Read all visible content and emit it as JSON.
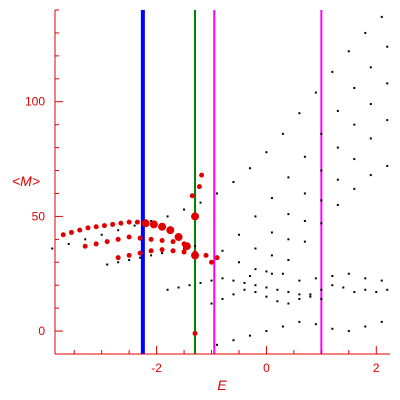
{
  "chart_data": {
    "type": "scatter",
    "title": "",
    "xlabel": "E",
    "ylabel": "<M>",
    "xlim": [
      -3.85,
      2.25
    ],
    "ylim": [
      -10,
      140
    ],
    "x_ticks": [
      -2,
      0,
      2
    ],
    "y_ticks": [
      0,
      50,
      100
    ],
    "x_tick_labels": [
      "-2",
      "0",
      "2"
    ],
    "y_tick_labels": [
      "0",
      "50",
      "100"
    ],
    "grid": false,
    "legend": "none",
    "colors": {
      "axes": "#e00000",
      "black_points": "#000000",
      "red_points": "#e00000",
      "blue_line": "#0000ff",
      "green_line": "#008000",
      "magenta_line": "#ff00ff"
    },
    "vertical_lines": [
      {
        "x": -2.25,
        "color": "#0000ff"
      },
      {
        "x": -1.3,
        "color": "#008000"
      },
      {
        "x": -0.95,
        "color": "#ff00ff"
      },
      {
        "x": 1.0,
        "color": "#ff00ff"
      }
    ],
    "black_series": [
      {
        "x": [
          -3.9,
          -3.6,
          -3.3,
          -3.0,
          -2.7,
          -2.4,
          -2.1,
          -1.8,
          -1.5,
          -1.2,
          -0.9,
          -0.6,
          -0.3,
          0.0,
          0.3,
          0.6,
          0.9,
          1.2,
          1.5,
          1.8,
          2.1
        ],
        "y": [
          36,
          38,
          40,
          42,
          44,
          46,
          48,
          50,
          53,
          56,
          60,
          65,
          71,
          78,
          86,
          95,
          104,
          113,
          122,
          130,
          137
        ]
      },
      {
        "x": [
          -0.8,
          -0.5,
          -0.2,
          0.1,
          0.4,
          0.7,
          1.0,
          1.3,
          1.6,
          1.9,
          2.2
        ],
        "y": [
          35,
          42,
          50,
          58,
          67,
          76,
          86,
          96,
          106,
          115,
          124
        ]
      },
      {
        "x": [
          -0.5,
          -0.2,
          0.1,
          0.4,
          0.7,
          1.0,
          1.3,
          1.6,
          1.9,
          2.2
        ],
        "y": [
          30,
          36,
          43,
          51,
          60,
          70,
          80,
          90,
          99,
          108
        ]
      },
      {
        "x": [
          -0.2,
          0.1,
          0.4,
          0.7,
          1.0,
          1.3,
          1.6,
          1.9,
          2.2
        ],
        "y": [
          27,
          33,
          40,
          48,
          57,
          66,
          75,
          84,
          92
        ]
      },
      {
        "x": [
          0.1,
          0.4,
          0.7,
          1.0,
          1.3,
          1.6,
          1.9,
          2.2
        ],
        "y": [
          25,
          31,
          39,
          47,
          55,
          62,
          68,
          72
        ]
      },
      {
        "x": [
          -2.9,
          -2.7,
          -2.5,
          -2.3,
          -2.1,
          -1.9,
          -1.7,
          -1.5,
          -1.3
        ],
        "y": [
          29,
          30,
          31,
          32,
          33,
          34,
          35,
          36,
          37
        ]
      },
      {
        "x": [
          -1.8,
          -1.6,
          -1.4,
          -1.2,
          -1.0,
          -0.8,
          -0.6,
          -0.4,
          -0.2,
          0.0,
          0.2,
          0.4,
          0.6,
          0.8,
          1.0
        ],
        "y": [
          18,
          19,
          20,
          21,
          22,
          23,
          22,
          21,
          20,
          19,
          18,
          17,
          16,
          15,
          14
        ]
      },
      {
        "x": [
          -1.0,
          -0.8,
          -0.6,
          -0.4,
          -0.2,
          0.0,
          0.2,
          0.4,
          0.6,
          0.8,
          1.0,
          1.2,
          1.4,
          1.6,
          1.8,
          2.0,
          2.2
        ],
        "y": [
          12,
          14,
          16,
          18,
          17,
          15,
          13,
          12,
          14,
          16,
          18,
          20,
          19,
          17,
          18,
          17,
          18
        ]
      },
      {
        "x": [
          -0.9,
          -0.6,
          -0.3,
          0.0,
          0.3,
          0.6,
          0.9,
          1.2,
          1.5,
          1.8,
          2.1
        ],
        "y": [
          -6,
          -4,
          -2,
          0,
          2,
          4,
          3,
          1,
          0,
          2,
          4
        ]
      },
      {
        "x": [
          -0.3,
          0.0,
          0.3,
          0.6,
          0.9,
          1.2,
          1.5,
          1.8,
          2.1
        ],
        "y": [
          24,
          26,
          25,
          22,
          23,
          24,
          25,
          23,
          22
        ]
      }
    ],
    "red_series": [
      {
        "x": [
          -3.7,
          -3.55,
          -3.4,
          -3.25,
          -3.1,
          -2.95,
          -2.8,
          -2.65,
          -2.5,
          -2.35,
          -2.2,
          -2.05,
          -1.9,
          -1.75,
          -1.6,
          -1.45,
          -1.3
        ],
        "y": [
          42,
          43,
          44,
          45,
          45.5,
          46,
          46.5,
          47,
          47.5,
          47.5,
          47,
          46.5,
          45.5,
          44,
          41,
          37,
          33
        ]
      },
      {
        "x": [
          -3.3,
          -3.1,
          -2.9,
          -2.7,
          -2.5,
          -2.3,
          -2.1,
          -1.9,
          -1.7,
          -1.5
        ],
        "y": [
          37,
          38,
          39,
          40,
          41,
          40.5,
          40,
          39.5,
          39,
          38
        ]
      },
      {
        "x": [
          -2.7,
          -2.5,
          -2.3,
          -2.1,
          -1.9,
          -1.7,
          -1.5,
          -1.3,
          -1.1,
          -0.9
        ],
        "y": [
          32,
          33,
          34,
          35,
          35.5,
          35,
          34.5,
          34,
          33,
          32
        ]
      },
      {
        "x": [
          -1.3,
          -1.35,
          -1.22,
          -1.18,
          -1.0,
          -1.3
        ],
        "y": [
          50,
          59,
          63,
          68,
          30,
          -1
        ]
      }
    ]
  }
}
